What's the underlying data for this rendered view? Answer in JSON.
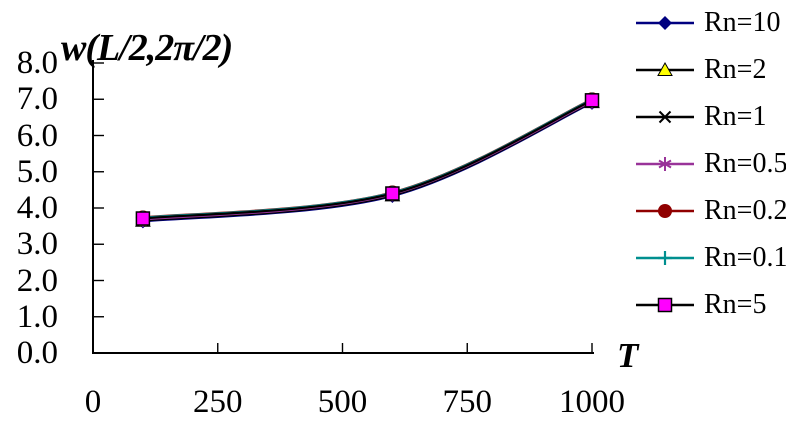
{
  "chart_data": {
    "type": "line",
    "title": "",
    "ylabel": "w(L/2,2π/2)",
    "xlabel": "T",
    "x": [
      100,
      600,
      1000
    ],
    "xlim": [
      0,
      1000
    ],
    "ylim": [
      0,
      8
    ],
    "x_ticks": [
      {
        "value": 0,
        "label": "0"
      },
      {
        "value": 250,
        "label": "250"
      },
      {
        "value": 500,
        "label": "500"
      },
      {
        "value": 750,
        "label": "750"
      },
      {
        "value": 1000,
        "label": "1000"
      }
    ],
    "y_ticks": [
      {
        "value": 0,
        "label": "0.0"
      },
      {
        "value": 1,
        "label": "1.0"
      },
      {
        "value": 2,
        "label": "2.0"
      },
      {
        "value": 3,
        "label": "3.0"
      },
      {
        "value": 4,
        "label": "4.0"
      },
      {
        "value": 5,
        "label": "5.0"
      },
      {
        "value": 6,
        "label": "6.0"
      },
      {
        "value": 7,
        "label": "7.0"
      },
      {
        "value": 8,
        "label": "8.0"
      }
    ],
    "grid": false,
    "legend_position": "right",
    "line_smoothing": true,
    "series": [
      {
        "name": "Rn=10",
        "line_color": "#000080",
        "marker": "diamond",
        "marker_color": "#000080",
        "values": [
          3.63,
          4.33,
          6.9
        ]
      },
      {
        "name": "Rn=2",
        "line_color": "#000000",
        "marker": "triangle",
        "marker_color": "#ffff00",
        "values": [
          3.65,
          4.35,
          6.92
        ]
      },
      {
        "name": "Rn=1",
        "line_color": "#000000",
        "marker": "x",
        "marker_color": "#000000",
        "values": [
          3.66,
          4.36,
          6.93
        ]
      },
      {
        "name": "Rn=0.5",
        "line_color": "#993399",
        "marker": "asterisk",
        "marker_color": "#993399",
        "values": [
          3.68,
          4.38,
          6.94
        ]
      },
      {
        "name": "Rn=0.2",
        "line_color": "#900000",
        "marker": "circle",
        "marker_color": "#900000",
        "values": [
          3.74,
          4.43,
          7.0
        ]
      },
      {
        "name": "Rn=0.1",
        "line_color": "#008f8f",
        "marker": "plus",
        "marker_color": "#008f8f",
        "values": [
          3.73,
          4.42,
          6.99
        ]
      },
      {
        "name": "Rn=5",
        "line_color": "#000000",
        "marker": "square",
        "marker_color": "#ff00ff",
        "values": [
          3.71,
          4.4,
          6.97
        ]
      }
    ],
    "axis_color": "#000000"
  }
}
